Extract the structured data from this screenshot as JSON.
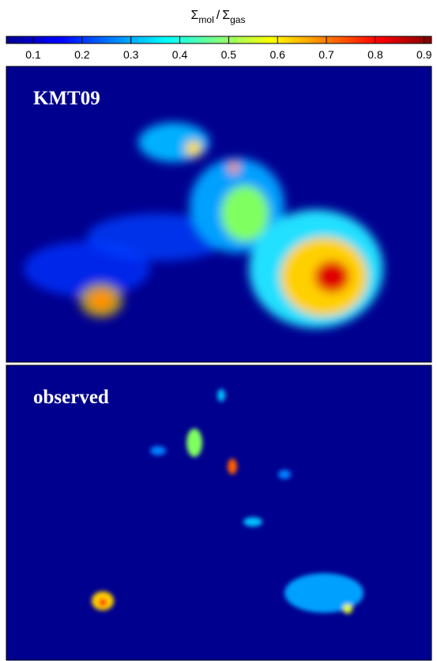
{
  "chart_data": {
    "type": "colorbar",
    "colormap": "jet",
    "label": {
      "numerator": "Σ",
      "numerator_sub": "mol",
      "separator": "/",
      "denominator": "Σ",
      "denominator_sub": "gas"
    },
    "xlim": [
      0.045,
      0.915
    ],
    "xticks": [
      0.1,
      0.2,
      0.3,
      0.4,
      0.5,
      0.6,
      0.7,
      0.8,
      0.9
    ],
    "panels": [
      {
        "label": "KMT09"
      },
      {
        "label": "observed"
      }
    ]
  }
}
